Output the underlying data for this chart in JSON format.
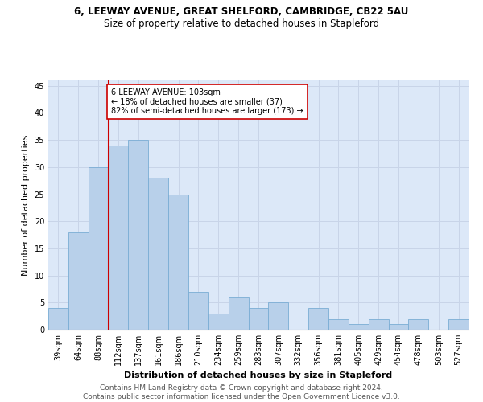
{
  "title1": "6, LEEWAY AVENUE, GREAT SHELFORD, CAMBRIDGE, CB22 5AU",
  "title2": "Size of property relative to detached houses in Stapleford",
  "xlabel": "Distribution of detached houses by size in Stapleford",
  "ylabel": "Number of detached properties",
  "categories": [
    "39sqm",
    "64sqm",
    "88sqm",
    "112sqm",
    "137sqm",
    "161sqm",
    "186sqm",
    "210sqm",
    "234sqm",
    "259sqm",
    "283sqm",
    "307sqm",
    "332sqm",
    "356sqm",
    "381sqm",
    "405sqm",
    "429sqm",
    "454sqm",
    "478sqm",
    "503sqm",
    "527sqm"
  ],
  "values": [
    4,
    18,
    30,
    34,
    35,
    28,
    25,
    7,
    3,
    6,
    4,
    5,
    0,
    4,
    2,
    1,
    2,
    1,
    2,
    0,
    2
  ],
  "bar_color": "#b8d0ea",
  "bar_edge_color": "#7aadd4",
  "highlight_line_color": "#cc0000",
  "highlight_index": 3,
  "annotation_text": "6 LEEWAY AVENUE: 103sqm\n← 18% of detached houses are smaller (37)\n82% of semi-detached houses are larger (173) →",
  "annotation_box_color": "#ffffff",
  "annotation_box_edge": "#cc0000",
  "ylim": [
    0,
    46
  ],
  "yticks": [
    0,
    5,
    10,
    15,
    20,
    25,
    30,
    35,
    40,
    45
  ],
  "grid_color": "#c8d4e8",
  "bg_color": "#dce8f8",
  "footer": "Contains HM Land Registry data © Crown copyright and database right 2024.\nContains public sector information licensed under the Open Government Licence v3.0.",
  "title1_fontsize": 8.5,
  "title2_fontsize": 8.5,
  "xlabel_fontsize": 8,
  "ylabel_fontsize": 8,
  "tick_fontsize": 7,
  "annotation_fontsize": 7,
  "footer_fontsize": 6.5
}
